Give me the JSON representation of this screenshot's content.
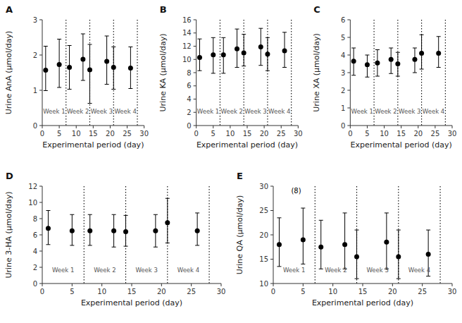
{
  "chart_data": [
    {
      "type": "scatter",
      "title": "A",
      "xlabel": "Experimental period (day)",
      "ylabel": "Urine AnA (μmol/day)",
      "xlim": [
        0,
        30
      ],
      "xticks": [
        0,
        5,
        10,
        15,
        20,
        25,
        30
      ],
      "ylim": [
        0,
        3
      ],
      "yticks": [
        0,
        1,
        2,
        3
      ],
      "grid": false,
      "marker": "circle",
      "color": "black",
      "x": [
        1,
        5,
        8,
        12,
        14,
        19,
        21,
        26
      ],
      "values": [
        1.57,
        1.73,
        1.65,
        1.88,
        1.58,
        1.82,
        1.65,
        1.63
      ],
      "error_low": [
        0.58,
        0.65,
        0.62,
        0.6,
        0.95,
        0.65,
        0.62,
        0.58
      ],
      "error_high": [
        0.68,
        0.72,
        0.62,
        0.72,
        0.72,
        0.72,
        0.58,
        0.6
      ],
      "vlines": [
        7,
        14,
        21,
        28
      ],
      "annotations": [
        {
          "text": "Week 1",
          "x": 3.5
        },
        {
          "text": "Week 2",
          "x": 10.5
        },
        {
          "text": "Week 3",
          "x": 17.5
        },
        {
          "text": "Week 4",
          "x": 24.5
        }
      ]
    },
    {
      "type": "scatter",
      "title": "B",
      "xlabel": "Experimental period (day)",
      "ylabel": "Urine KA (μmol/day)",
      "xlim": [
        0,
        30
      ],
      "xticks": [
        0,
        5,
        10,
        15,
        20,
        25,
        30
      ],
      "ylim": [
        0,
        16
      ],
      "yticks": [
        0,
        2,
        4,
        6,
        8,
        10,
        12,
        14,
        16
      ],
      "grid": false,
      "marker": "circle",
      "color": "black",
      "x": [
        1,
        5,
        8,
        12,
        14,
        19,
        21,
        26
      ],
      "values": [
        10.3,
        10.7,
        10.7,
        11.6,
        11.0,
        11.9,
        10.8,
        11.3
      ],
      "error_low": [
        2.0,
        2.8,
        2.8,
        2.8,
        2.0,
        2.8,
        2.5,
        2.5
      ],
      "error_high": [
        2.8,
        2.6,
        2.6,
        3.0,
        2.8,
        2.8,
        2.5,
        2.8
      ],
      "vlines": [
        7,
        14,
        21,
        28
      ],
      "annotations": [
        {
          "text": "Week 1",
          "x": 3.5
        },
        {
          "text": "Week 2",
          "x": 10.5
        },
        {
          "text": "Week 3",
          "x": 17.5
        },
        {
          "text": "Week 4",
          "x": 24.5
        }
      ]
    },
    {
      "type": "scatter",
      "title": "C",
      "xlabel": "Experimental period (day)",
      "ylabel": "Urine XA (μmol/day)",
      "xlim": [
        0,
        30
      ],
      "xticks": [
        0,
        5,
        10,
        15,
        20,
        25,
        30
      ],
      "ylim": [
        0,
        6
      ],
      "yticks": [
        0,
        1,
        2,
        3,
        4,
        5,
        6
      ],
      "grid": false,
      "marker": "circle",
      "color": "black",
      "x": [
        1,
        5,
        8,
        12,
        14,
        19,
        21,
        26
      ],
      "values": [
        3.65,
        3.45,
        3.55,
        3.75,
        3.5,
        3.75,
        4.1,
        4.1
      ],
      "error_low": [
        0.8,
        0.7,
        0.75,
        0.8,
        0.7,
        0.75,
        0.9,
        0.8
      ],
      "error_high": [
        0.75,
        0.55,
        0.75,
        0.65,
        0.65,
        0.65,
        1.05,
        0.95
      ],
      "vlines": [
        7,
        14,
        21,
        28
      ],
      "annotations": [
        {
          "text": "Week 1",
          "x": 3.5
        },
        {
          "text": "Week 2",
          "x": 10.5
        },
        {
          "text": "Week 3",
          "x": 17.5
        },
        {
          "text": "Week 4",
          "x": 24.5
        }
      ]
    },
    {
      "type": "scatter",
      "title": "D",
      "xlabel": "Experimental period (day)",
      "ylabel": "Urine 3-HA (μmol/day)",
      "xlim": [
        0,
        30
      ],
      "xticks": [
        0,
        5,
        10,
        15,
        20,
        25,
        30
      ],
      "ylim": [
        0,
        12
      ],
      "yticks": [
        0,
        2,
        4,
        6,
        8,
        10,
        12
      ],
      "grid": false,
      "marker": "circle",
      "color": "black",
      "x": [
        1,
        5,
        8,
        12,
        14,
        19,
        21,
        26
      ],
      "values": [
        6.8,
        6.5,
        6.5,
        6.5,
        6.4,
        6.5,
        7.5,
        6.5
      ],
      "error_low": [
        2.0,
        1.8,
        1.8,
        2.0,
        1.8,
        2.0,
        2.5,
        1.8
      ],
      "error_high": [
        2.2,
        2.0,
        2.0,
        2.0,
        2.0,
        2.0,
        3.0,
        2.2
      ],
      "vlines": [
        7,
        14,
        21,
        28
      ],
      "annotations": [
        {
          "text": "Week 1",
          "x": 3.5
        },
        {
          "text": "Week 2",
          "x": 10.5
        },
        {
          "text": "Week 3",
          "x": 17.5
        },
        {
          "text": "Week 4",
          "x": 24.5
        }
      ]
    },
    {
      "type": "scatter",
      "title": "E",
      "xlabel": "Experimental period (day)",
      "ylabel": "Urine QA (μmol/day)",
      "xlim": [
        0,
        30
      ],
      "xticks": [
        0,
        5,
        10,
        15,
        20,
        25,
        30
      ],
      "ylim": [
        10,
        30
      ],
      "yticks": [
        10,
        15,
        20,
        25,
        30
      ],
      "grid": false,
      "marker": "circle",
      "color": "black",
      "x": [
        1,
        5,
        8,
        12,
        14,
        19,
        21,
        26
      ],
      "values": [
        18.0,
        19.0,
        17.5,
        18.0,
        15.5,
        18.5,
        15.5,
        16.0
      ],
      "error_low": [
        4.5,
        5.0,
        4.5,
        5.0,
        4.5,
        5.5,
        4.5,
        4.5
      ],
      "error_high": [
        5.5,
        6.5,
        5.5,
        6.5,
        5.5,
        6.0,
        5.5,
        5.0
      ],
      "vlines": [
        7,
        14,
        21,
        28
      ],
      "annotations": [
        {
          "text": "Week 1",
          "x": 3.5
        },
        {
          "text": "Week 2",
          "x": 10.5
        },
        {
          "text": "Week 3",
          "x": 17.5
        },
        {
          "text": "Week 4",
          "x": 24.5
        },
        {
          "text": "(8)"
        }
      ]
    }
  ]
}
